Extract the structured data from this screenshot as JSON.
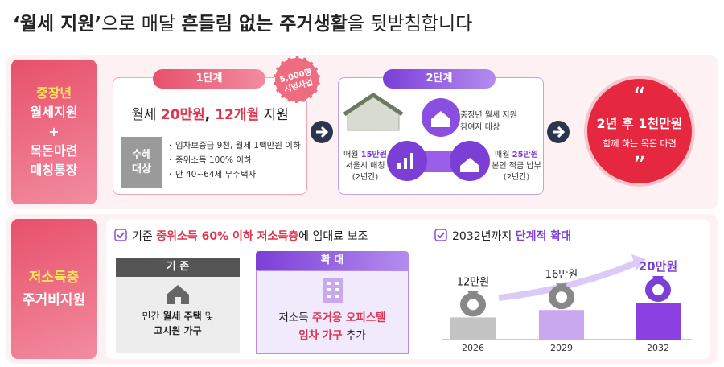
{
  "header": {
    "title_parts": [
      {
        "text": "‘월세 지원’",
        "style": "bold"
      },
      {
        "text": "으로 매달 ",
        "style": "normal"
      },
      {
        "text": "흔들림 없는 ",
        "style": "bold"
      },
      {
        "text": "주거생활",
        "style": "bold"
      },
      {
        "text": "을 뒷받침합니다",
        "style": "normal"
      }
    ]
  },
  "section1": {
    "label_lines": [
      "중장년",
      "월세지원",
      "+",
      "목돈마련",
      "매칭통장"
    ],
    "step1": {
      "badge": "1단계",
      "stamp_lines": [
        "5,000명",
        "시범사업"
      ],
      "main_parts": [
        {
          "text": "월세 ",
          "style": "normal"
        },
        {
          "text": "20만원",
          "style": "accent"
        },
        {
          "text": ", ",
          "style": "bold"
        },
        {
          "text": "12개월",
          "style": "accent"
        },
        {
          "text": " 지원",
          "style": "normal"
        }
      ],
      "eligibility_label_lines": [
        "수혜",
        "대상"
      ],
      "eligibility_items": [
        "임차보증금 9천, 월세 1백만원 이하",
        "중위소득 100% 이하",
        "만 40~64세 무주택자"
      ]
    },
    "step2": {
      "badge": "2단계",
      "target_lines": [
        "중장년 월세 지원",
        "참여자 대상"
      ],
      "left": {
        "headline_parts": [
          {
            "text": "매월 ",
            "style": "normal"
          },
          {
            "text": "15만원",
            "style": "purple"
          }
        ],
        "lines": [
          "서울시 매칭",
          "(2년간)"
        ]
      },
      "right": {
        "headline_parts": [
          {
            "text": "매월 ",
            "style": "normal"
          },
          {
            "text": "25만원",
            "style": "purple"
          }
        ],
        "lines": [
          "본인 적금 납부",
          "(2년간)"
        ]
      }
    },
    "result": {
      "open_quote": "“",
      "headline": "2년 후 1천만원",
      "subline": "함께 하는 목돈 마련",
      "close_quote": "”"
    }
  },
  "section2": {
    "label_lines": [
      "저소득층",
      "주거비지원"
    ],
    "criteria_parts": [
      {
        "text": "기준 ",
        "style": "normal"
      },
      {
        "text": "중위소득 60% 이하 저소득층",
        "style": "accent"
      },
      {
        "text": "에 임대료 보조",
        "style": "normal"
      }
    ],
    "existing": {
      "header": "기 존",
      "lines": [
        [
          {
            "text": "민간 ",
            "style": "normal"
          },
          {
            "text": "월세 주택",
            "style": "bold"
          },
          {
            "text": " 및",
            "style": "normal"
          }
        ],
        [
          {
            "text": "고시원 가구",
            "style": "bold"
          }
        ]
      ]
    },
    "expansion": {
      "header": "확 대",
      "lines": [
        [
          {
            "text": "저소득 ",
            "style": "normal"
          },
          {
            "text": "주거용 오피스텔",
            "style": "accent"
          }
        ],
        [
          {
            "text": "임차 가구",
            "style": "accent"
          },
          {
            "text": " 추가",
            "style": "normal"
          }
        ]
      ]
    },
    "plan": {
      "headline_parts": [
        {
          "text": "2032년까지 ",
          "style": "normal"
        },
        {
          "text": "단계적 확대",
          "style": "purple"
        }
      ],
      "bars": [
        {
          "year": "2026",
          "value": 12,
          "label": "12만원",
          "color": "#c4c4c4"
        },
        {
          "year": "2029",
          "value": 16,
          "label": "16만원",
          "color": "#c9a8f0"
        },
        {
          "year": "2032",
          "value": 20,
          "label": "20만원",
          "color": "#8a3fe0"
        }
      ]
    }
  }
}
